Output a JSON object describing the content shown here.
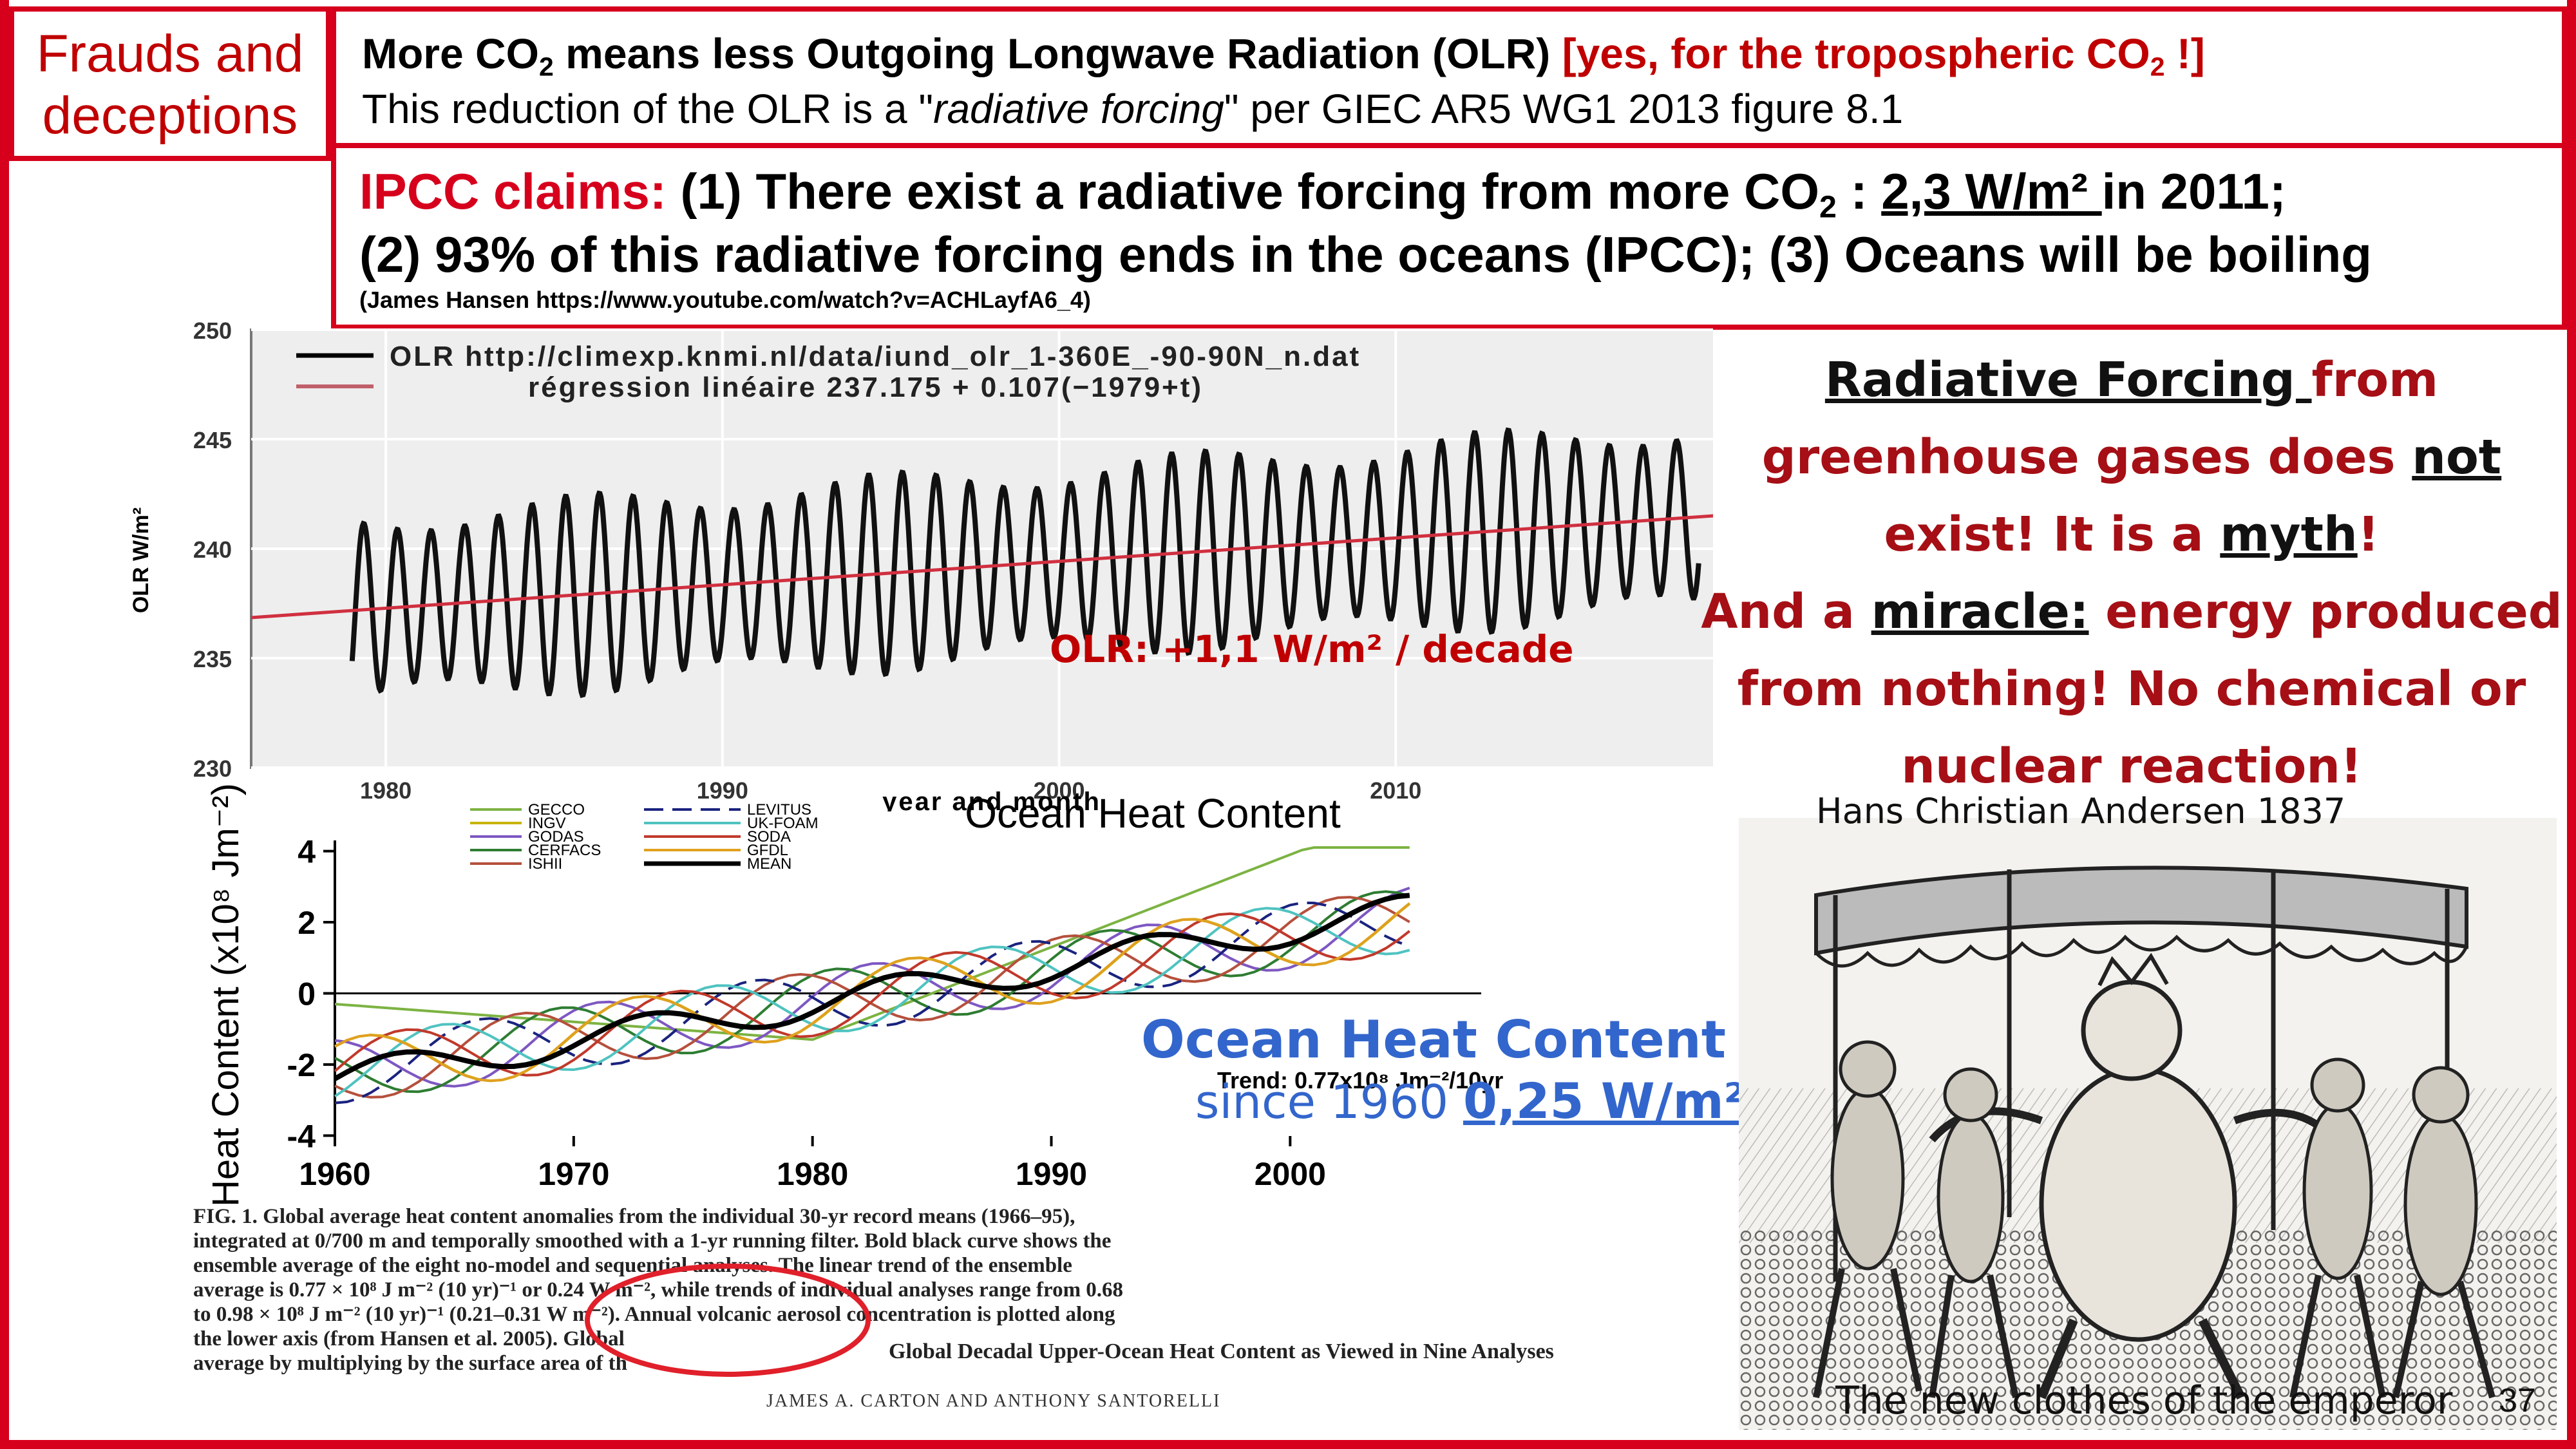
{
  "tag": {
    "line1": "Frauds and",
    "line2": "deceptions"
  },
  "header": {
    "l1_a": "More CO",
    "l1_sub": "2",
    "l1_b": " means less Outgoing Longwave Radiation (OLR) ",
    "l1_red_a": "[yes, for the tropospheric CO",
    "l1_red_sub": "2",
    "l1_red_b": " !]",
    "l2_a": "This reduction of the OLR is a \"",
    "l2_italic": "radiative forcing",
    "l2_b": "\" per GIEC AR5 WG1 2013 figure 8.1"
  },
  "claims": {
    "label": "IPCC claims:",
    "l1_a": " (1) There exist a radiative forcing from more CO",
    "l1_sub": "2",
    "l1_b": " : ",
    "l1_u": "2,3 W/m² ",
    "l1_c": "in 2011;",
    "l2": "(2) 93% of this radiative forcing ends in the oceans (IPCC); (3) Oceans will be boiling",
    "l3": "(James Hansen https://www.youtube.com/watch?v=ACHLayfA6_4)"
  },
  "olr_chart": {
    "legend1": "OLR http://climexp.knmi.nl/data/iund_olr_1-360E_-90-90N_n.dat",
    "legend2": "régression linéaire 237.175 + 0.107(−1979+t)",
    "ylabel": "OLR W/m²",
    "xlabel": "year and month",
    "yticks": [
      "250",
      "245",
      "240",
      "235",
      "230"
    ],
    "xticks": [
      "1980",
      "1990",
      "2000",
      "2010"
    ],
    "note": "OLR:  +1,1 W/m² / decade"
  },
  "ohc_chart": {
    "title": "Ocean Heat Content",
    "ylabel": "Heat Content  (x10⁸ Jm⁻²)",
    "yticks": [
      "4",
      "2",
      "0",
      "-2",
      "-4"
    ],
    "xticks": [
      "1960",
      "1970",
      "1980",
      "1990",
      "2000"
    ],
    "legend_left": [
      "GECCO",
      "INGV",
      "GODAS",
      "CERFACS",
      "ISHII"
    ],
    "legend_right": [
      "LEVITUS",
      "UK-FOAM",
      "SODA",
      "GFDL",
      "MEAN"
    ],
    "trend": "Trend: 0.77x10⁸ Jm⁻²/10yr",
    "overlay_title": "Ocean Heat Content",
    "overlay_since": "since 1960  ",
    "overlay_value": "0,25 W/m²"
  },
  "caption": {
    "lines": [
      "FIG. 1. Global average heat content anomalies from the individual 30-yr record means (1966–95),",
      "integrated at 0/700 m and temporally smoothed with a 1-yr running filter. Bold black curve shows the",
      "ensemble average of the eight no-model and sequential analyses. The linear trend of the ensemble",
      "average is 0.77 × 10⁸ J m⁻² (10 yr)⁻¹ or 0.24 W m⁻², while trends of individual analyses range from 0.68",
      "to 0.98 × 10⁸ J m⁻² (10 yr)⁻¹ (0.21–0.31 W m⁻²). Annual volcanic aerosol concentration is plotted along",
      "the lower axis (from Hansen et al. 2005). Global",
      "average by multiplying by the surface area of th"
    ],
    "paper_title": "Global Decadal Upper-Ocean Heat Content as Viewed in Nine Analyses",
    "authors": "JAMES A. CARTON AND ANTHONY SANTORELLI"
  },
  "rf": {
    "l1_u": "Radiative Forcing ",
    "l1_b": "from",
    "l2_a": "greenhouse gases does ",
    "l2_u": "not",
    "l3_a": "exist!  It is a ",
    "l3_u": "myth",
    "l3_b": "!",
    "l4_a": "And a ",
    "l4_u": "miracle:",
    "l4_b": " energy produced",
    "l5": "from nothing! No chemical or",
    "l6": "nuclear reaction!"
  },
  "image": {
    "credit": "Hans Christian Andersen 1837",
    "caption": "The new clothes of the emperor"
  },
  "page_number": "37",
  "colors": {
    "accent_red": "#d6001c",
    "dark_red": "#a50f15",
    "blue": "#3366cc"
  }
}
